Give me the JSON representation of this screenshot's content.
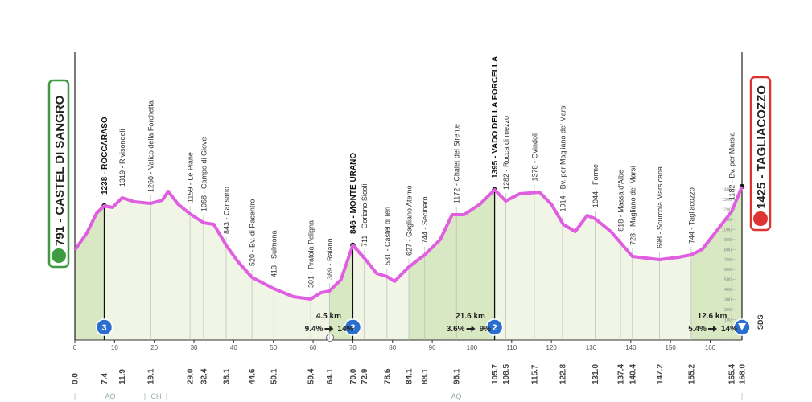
{
  "start": {
    "label": "791 - CASTEL DI SANGRO",
    "km": "0.0"
  },
  "finish": {
    "label": "1425 - TAGLIACOZZO",
    "km": "168.0",
    "length": "12.6 km",
    "gradient_from": "5.4%",
    "gradient_to": "14%",
    "note": "SDS"
  },
  "waypoints": [
    {
      "label": "1238 - ROCCARASO",
      "km": "7.4",
      "summit": true
    },
    {
      "label": "1319 - Rivisondoli",
      "km": "11.9"
    },
    {
      "label": "1260 - Valico della Forchetta",
      "km": "19.1"
    },
    {
      "label": "1159 - Le Piane",
      "km": "29.0"
    },
    {
      "label": "1068 - Campo di Giove",
      "km": "32.4"
    },
    {
      "label": "843 - Cansano",
      "km": "38.1"
    },
    {
      "label": "520 - Bv. di Pacentro",
      "km": "44.6"
    },
    {
      "label": "413 - Sulmona",
      "km": "50.1"
    },
    {
      "label": "301 - Pratola Peligna",
      "km": "59.4"
    },
    {
      "label": "389 - Raiano",
      "km": "64.1"
    },
    {
      "label": "846 - MONTE URANO",
      "km": "70.0",
      "summit": true
    },
    {
      "label": "711 - Goriano Sicoli",
      "km": "72.9"
    },
    {
      "label": "531 - Castel di Ieri",
      "km": "78.6"
    },
    {
      "label": "627 - Gagliano Aterno",
      "km": "84.1"
    },
    {
      "label": "744 - Secinaro",
      "km": "88.1"
    },
    {
      "label": "1172 - Chalet del Sirente",
      "km": "96.1"
    },
    {
      "label": "1395 - VADO DELLA FORCELLA",
      "km": "105.7",
      "summit": true
    },
    {
      "label": "1282 - Rocca di mezzo",
      "km": "108.5"
    },
    {
      "label": "1378 - Ovindoli",
      "km": "115.7"
    },
    {
      "label": "1014 - Bv. per Magliano de' Marsi",
      "km": "122.8"
    },
    {
      "label": "1044 - Forme",
      "km": "131.0"
    },
    {
      "label": "818 - Massa d'Albe",
      "km": "137.4"
    },
    {
      "label": "728 - Magliano de' Marsi",
      "km": "140.4"
    },
    {
      "label": "698 - Scurcola Marsicana",
      "km": "147.2"
    },
    {
      "label": "744 - Tagliacozzo",
      "km": "155.2"
    },
    {
      "label": "1182 - Bv. per Marsia",
      "km": "165.4"
    }
  ],
  "climbs": [
    {
      "category": "3"
    },
    {
      "category": "2",
      "length": "4.5 km",
      "gradient_from": "9.4%",
      "gradient_to": "14%"
    },
    {
      "category": "2",
      "length": "21.6 km",
      "gradient_from": "3.6%",
      "gradient_to": "9%"
    }
  ],
  "distance_ticks": [
    0,
    10,
    20,
    30,
    40,
    50,
    60,
    70,
    80,
    90,
    100,
    110,
    120,
    130,
    140,
    150,
    160
  ],
  "altitude_ticks": [
    100,
    200,
    300,
    400,
    500,
    600,
    700,
    800,
    900,
    1000,
    1100,
    1200,
    1300,
    1400
  ],
  "regions": [
    "AQ",
    "CH",
    "AQ"
  ]
}
